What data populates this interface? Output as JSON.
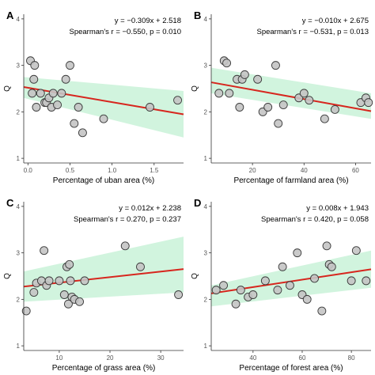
{
  "chart_data": [
    {
      "type": "scatter",
      "panel": "A",
      "equation": "y = −0.309x + 2.518",
      "stats": "Spearman's r = −0.550, p = 0.010",
      "xlabel": "Percentage of uban area (%)",
      "ylabel": "Q",
      "xlim": [
        -0.05,
        1.85
      ],
      "ylim": [
        0.9,
        4.1
      ],
      "xticks": [
        0.0,
        0.5,
        1.0,
        1.5
      ],
      "xtick_labels": [
        "0.0",
        "0.5",
        "1.0",
        "1.5"
      ],
      "yticks": [
        1,
        2,
        3,
        4
      ],
      "ytick_labels": [
        "1",
        "2",
        "3",
        "4"
      ],
      "fit": {
        "slope": -0.309,
        "intercept": 2.518
      },
      "band": {
        "lower_start": 2.3,
        "lower_end": 1.45,
        "upper_start": 2.75,
        "upper_end": 2.45
      },
      "points": {
        "x": [
          0.03,
          0.07,
          0.08,
          0.05,
          0.1,
          0.15,
          0.2,
          0.22,
          0.25,
          0.28,
          0.3,
          0.35,
          0.4,
          0.45,
          0.5,
          0.55,
          0.6,
          0.65,
          0.9,
          1.45,
          1.78
        ],
        "y": [
          3.1,
          2.7,
          3.0,
          2.4,
          2.1,
          2.4,
          2.2,
          2.2,
          2.3,
          2.1,
          2.4,
          2.15,
          2.4,
          2.7,
          3.0,
          1.75,
          2.1,
          1.55,
          1.85,
          2.1,
          2.25
        ]
      }
    },
    {
      "type": "scatter",
      "panel": "B",
      "equation": "y = −0.010x + 2.675",
      "stats": "Spearman's r = −0.531, p = 0.013",
      "xlabel": "Percentage of farmland area (%)",
      "ylabel": "Q",
      "xlim": [
        4,
        66
      ],
      "ylim": [
        0.9,
        4.1
      ],
      "xticks": [
        20,
        40,
        60
      ],
      "xtick_labels": [
        "20",
        "40",
        "60"
      ],
      "yticks": [
        1,
        2,
        3,
        4
      ],
      "ytick_labels": [
        "1",
        "2",
        "3",
        "4"
      ],
      "fit": {
        "slope": -0.01,
        "intercept": 2.675
      },
      "band": {
        "lower_start": 2.4,
        "lower_end": 1.85,
        "upper_start": 2.95,
        "upper_end": 2.4
      },
      "points": {
        "x": [
          7,
          9,
          10,
          11,
          14,
          15,
          16,
          17,
          22,
          24,
          26,
          29,
          30,
          32,
          38,
          40,
          42,
          48,
          52,
          62,
          64,
          65
        ],
        "y": [
          2.4,
          3.1,
          3.05,
          2.4,
          2.7,
          2.1,
          2.7,
          2.8,
          2.7,
          2.0,
          2.1,
          3.0,
          1.75,
          2.15,
          2.3,
          2.4,
          2.25,
          1.85,
          2.05,
          2.2,
          2.3,
          2.2
        ]
      }
    },
    {
      "type": "scatter",
      "panel": "C",
      "equation": "y = 0.012x + 2.238",
      "stats": "Spearman's r = 0.270, p = 0.237",
      "xlabel": "Percentage of grass area (%)",
      "ylabel": "Q",
      "xlim": [
        3,
        34.5
      ],
      "ylim": [
        0.9,
        4.1
      ],
      "xticks": [
        10,
        20,
        30
      ],
      "xtick_labels": [
        "10",
        "20",
        "30"
      ],
      "yticks": [
        1,
        2,
        3,
        4
      ],
      "ytick_labels": [
        "1",
        "2",
        "3",
        "4"
      ],
      "fit": {
        "slope": 0.012,
        "intercept": 2.238
      },
      "band": {
        "lower_start": 1.95,
        "lower_end": 2.15,
        "upper_start": 2.6,
        "upper_end": 3.35
      },
      "points": {
        "x": [
          3.5,
          5,
          5.5,
          6.5,
          7,
          7.5,
          8,
          10,
          11,
          11.5,
          11.8,
          12,
          12.2,
          12.5,
          13,
          14,
          15,
          23,
          26,
          33.5
        ],
        "y": [
          1.75,
          2.15,
          2.35,
          2.4,
          3.05,
          2.3,
          2.4,
          2.4,
          2.1,
          2.7,
          1.9,
          2.75,
          2.4,
          2.05,
          2.0,
          1.95,
          2.4,
          3.15,
          2.7,
          2.1
        ]
      }
    },
    {
      "type": "scatter",
      "panel": "D",
      "equation": "y = 0.008x + 1.943",
      "stats": "Spearman's r = 0.420, p = 0.058",
      "xlabel": "Percentage of forest area (%)",
      "ylabel": "Q",
      "xlim": [
        23,
        88
      ],
      "ylim": [
        0.9,
        4.1
      ],
      "xticks": [
        40,
        60,
        80
      ],
      "xtick_labels": [
        "40",
        "60",
        "80"
      ],
      "yticks": [
        1,
        2,
        3,
        4
      ],
      "ytick_labels": [
        "1",
        "2",
        "3",
        "4"
      ],
      "fit": {
        "slope": 0.008,
        "intercept": 1.943
      },
      "band": {
        "lower_start": 1.85,
        "lower_end": 2.25,
        "upper_start": 2.3,
        "upper_end": 3.05
      },
      "points": {
        "x": [
          25,
          28,
          33,
          35,
          38,
          40,
          45,
          50,
          52,
          55,
          58,
          60,
          62,
          65,
          68,
          70,
          71,
          72,
          80,
          82,
          86
        ],
        "y": [
          2.2,
          2.3,
          1.9,
          2.2,
          2.05,
          2.1,
          2.4,
          2.2,
          2.7,
          2.3,
          3.0,
          2.1,
          2.0,
          2.45,
          1.75,
          3.15,
          2.75,
          2.7,
          2.4,
          3.05,
          2.4
        ]
      }
    }
  ]
}
